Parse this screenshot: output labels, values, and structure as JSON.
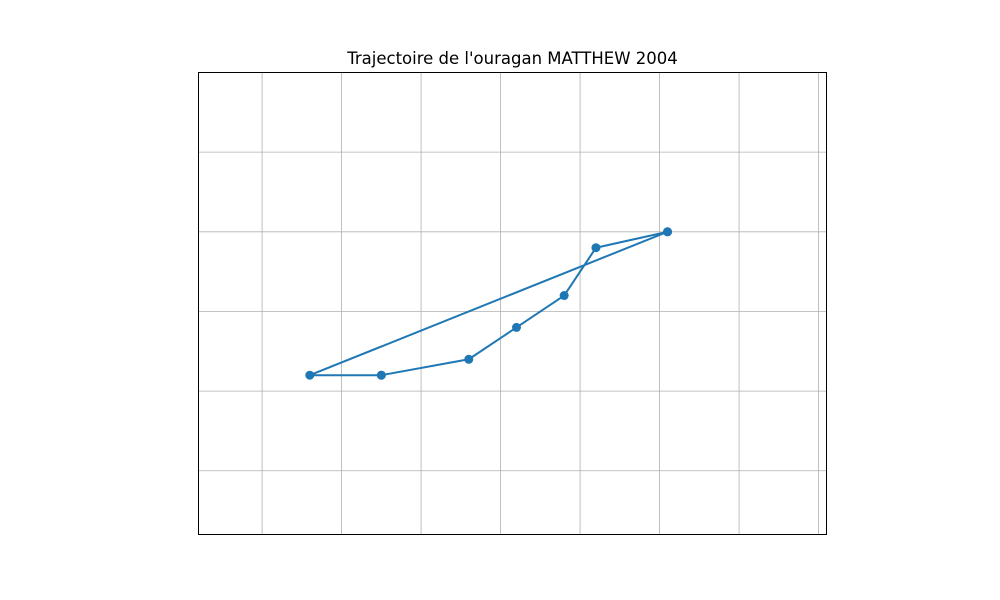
{
  "chart_data": {
    "type": "line",
    "title": "Trajectoire de l'ouragan MATTHEW 2004",
    "xlabel": "",
    "ylabel": "",
    "grid": true,
    "xlim": [
      -97.4,
      -89.5
    ],
    "ylim": [
      22.2,
      28.0
    ],
    "x_gridlines": [
      -96.6,
      -95.6,
      -94.6,
      -93.6,
      -92.6,
      -91.6,
      -90.6,
      -89.6
    ],
    "y_gridlines": [
      23.0,
      24.0,
      25.0,
      26.0,
      27.0
    ],
    "series": [
      {
        "color": "#1f77b4",
        "marker": "circle",
        "x": [
          -91.5,
          -92.4,
          -92.8,
          -93.4,
          -94.0,
          -95.1,
          -95.1,
          -96.0,
          -91.5
        ],
        "y": [
          26.0,
          25.8,
          25.2,
          24.8,
          24.4,
          24.2,
          24.2,
          24.2,
          26.0
        ]
      }
    ]
  }
}
